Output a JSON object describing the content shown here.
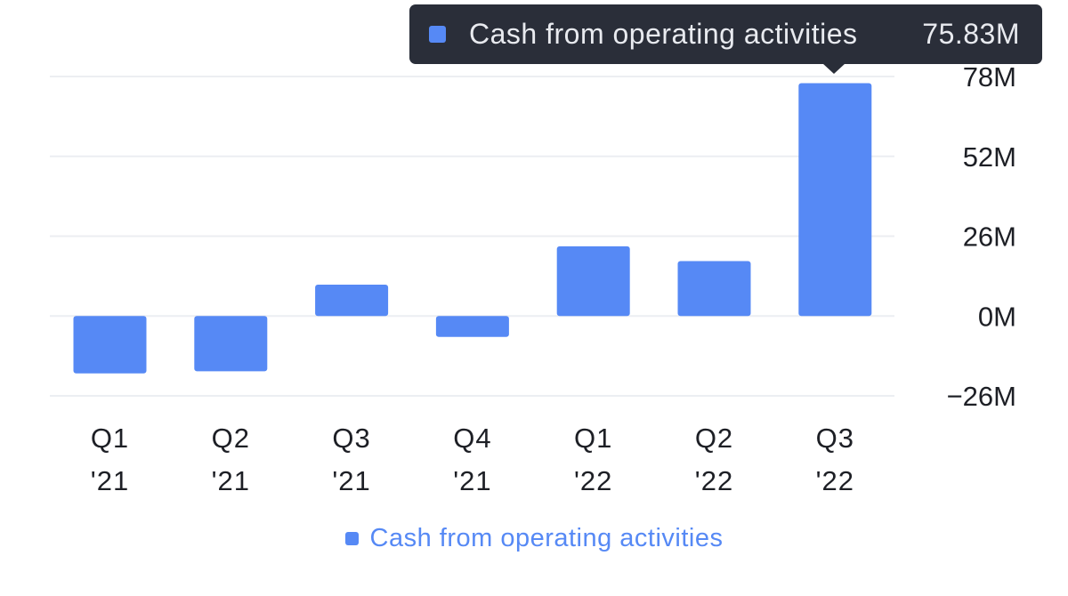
{
  "chart_data": {
    "type": "bar",
    "categories": [
      [
        "Q1",
        "'21"
      ],
      [
        "Q2",
        "'21"
      ],
      [
        "Q3",
        "'21"
      ],
      [
        "Q4",
        "'21"
      ],
      [
        "Q1",
        "'22"
      ],
      [
        "Q2",
        "'22"
      ],
      [
        "Q3",
        "'22"
      ]
    ],
    "series": [
      {
        "name": "Cash from operating activities",
        "values": [
          -18.7,
          -18.0,
          10.2,
          -6.8,
          22.7,
          17.9,
          75.83
        ]
      }
    ],
    "yticks": [
      {
        "value": 78,
        "label": "78M"
      },
      {
        "value": 52,
        "label": "52M"
      },
      {
        "value": 26,
        "label": "26M"
      },
      {
        "value": 0,
        "label": "0M"
      },
      {
        "value": -26,
        "label": "−26M"
      }
    ],
    "ylim": [
      -26,
      78
    ],
    "y_axis_position": "right",
    "grid": true,
    "legend": "bottom-center",
    "title": "",
    "xlabel": "",
    "ylabel": ""
  },
  "tooltip": {
    "series_name": "Cash from operating activities",
    "value": "75.83M",
    "target_category_index": 6
  },
  "legend": {
    "label": "Cash from operating activities"
  },
  "colors": {
    "bar": "#5689f5",
    "legend_text": "#5689f5",
    "tooltip_bg": "#2a2e39",
    "tooltip_text": "#e8eaef",
    "grid": "#eceef2",
    "axis_text": "#1d1f25"
  }
}
